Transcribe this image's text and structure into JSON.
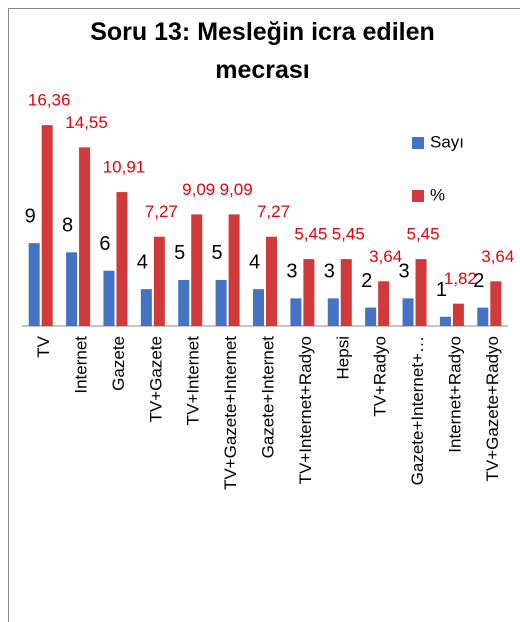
{
  "chart_data": {
    "type": "bar",
    "title": "Soru 13: Mesleğin icra edilen mecrası",
    "categories": [
      "TV",
      "Internet",
      "Gazete",
      "TV+Gazete",
      "TV+Internet",
      "TV+Gazete+Internet",
      "Gazete+Internet",
      "TV+Internet+Radyo",
      "Hepsi",
      "TV+Radyo",
      "Gazete+Internet+…",
      "Internet+Radyo",
      "TV+Gazete+Radyo"
    ],
    "series": [
      {
        "name": "Sayı",
        "color": "#4472c4",
        "values": [
          9,
          8,
          6,
          4,
          5,
          5,
          4,
          3,
          3,
          2,
          3,
          1,
          2
        ]
      },
      {
        "name": "%",
        "color": "#d03a3a",
        "axis": "y2",
        "values": [
          16.36,
          14.55,
          10.91,
          7.27,
          9.09,
          9.09,
          7.27,
          5.45,
          5.45,
          3.64,
          5.45,
          1.82,
          3.64
        ],
        "value_labels": [
          "16,36",
          "14,55",
          "10,91",
          "7,27",
          "9,09",
          "9,09",
          "7,27",
          "5,45",
          "5,45",
          "3,64",
          "5,45",
          "1,82",
          "3,64"
        ]
      }
    ],
    "ylim": [
      0,
      24
    ],
    "y2lim": [
      0,
      18
    ],
    "legend": "right"
  }
}
